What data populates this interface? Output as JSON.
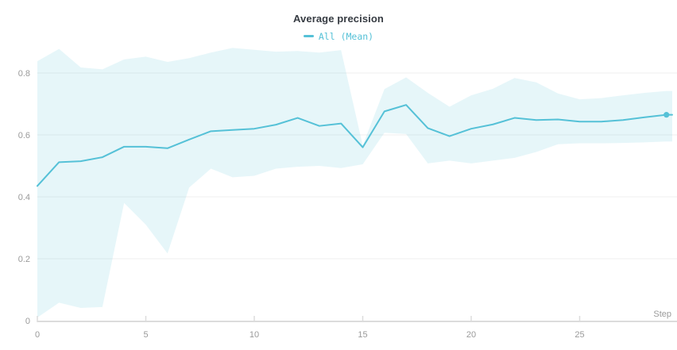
{
  "title": "Average precision",
  "legend": {
    "label": "All (Mean)"
  },
  "axis": {
    "x_label": "Step",
    "x_ticks": [
      "0",
      "5",
      "10",
      "15",
      "20",
      "25"
    ],
    "x_tick_values": [
      0,
      5,
      10,
      15,
      20,
      25
    ],
    "y_ticks": [
      "0",
      "0.2",
      "0.4",
      "0.6",
      "0.8"
    ],
    "y_tick_values": [
      0,
      0.2,
      0.4,
      0.6,
      0.8
    ]
  },
  "colors": {
    "line": "#55c1d7",
    "band_fill": "#55c1d7",
    "band_opacity": "0.15",
    "axis_line": "#dcdcdc",
    "grid_line": "#efefef",
    "tick_text": "#9a9a9a",
    "title_text": "#363b42"
  },
  "chart_data": {
    "type": "line",
    "title": "Average precision",
    "xlabel": "Step",
    "ylabel": "",
    "xlim": [
      0,
      29.3
    ],
    "ylim": [
      0,
      0.9
    ],
    "grid": true,
    "legend_position": "top-center",
    "x": [
      0,
      1,
      2,
      3,
      4,
      5,
      6,
      7,
      8,
      9,
      10,
      11,
      12,
      13,
      14,
      15,
      16,
      17,
      18,
      19,
      20,
      21,
      22,
      23,
      24,
      25,
      26,
      27,
      28,
      29
    ],
    "series": [
      {
        "name": "All (Mean)",
        "role": "mean-line",
        "values": [
          0.435,
          0.512,
          0.515,
          0.528,
          0.562,
          0.562,
          0.557,
          0.585,
          0.612,
          0.616,
          0.62,
          0.633,
          0.655,
          0.629,
          0.637,
          0.56,
          0.676,
          0.697,
          0.622,
          0.596,
          0.62,
          0.634,
          0.655,
          0.648,
          0.65,
          0.643,
          0.643,
          0.648,
          0.657,
          0.665
        ]
      },
      {
        "name": "All (band upper)",
        "role": "band-upper",
        "values": [
          0.838,
          0.878,
          0.818,
          0.812,
          0.844,
          0.853,
          0.836,
          0.848,
          0.866,
          0.881,
          0.875,
          0.869,
          0.871,
          0.866,
          0.874,
          0.566,
          0.748,
          0.786,
          0.736,
          0.691,
          0.728,
          0.749,
          0.784,
          0.77,
          0.734,
          0.715,
          0.719,
          0.728,
          0.736,
          0.742
        ]
      },
      {
        "name": "All (band lower)",
        "role": "band-lower",
        "values": [
          0.01,
          0.058,
          0.041,
          0.044,
          0.38,
          0.31,
          0.217,
          0.43,
          0.491,
          0.463,
          0.468,
          0.491,
          0.497,
          0.5,
          0.493,
          0.505,
          0.607,
          0.603,
          0.508,
          0.517,
          0.508,
          0.517,
          0.526,
          0.545,
          0.57,
          0.573,
          0.573,
          0.574,
          0.576,
          0.579
        ]
      }
    ],
    "end_marker": {
      "step": 29,
      "value": 0.665
    }
  }
}
